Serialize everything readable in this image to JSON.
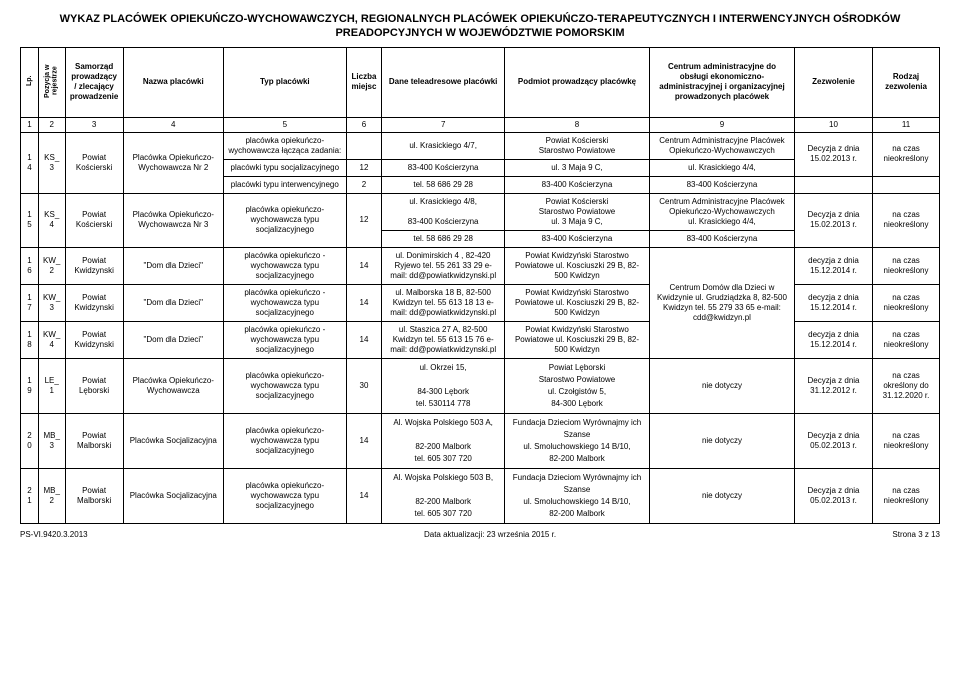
{
  "title_line1": "WYKAZ PLACÓWEK OPIEKUŃCZO-WYCHOWAWCZYCH, REGIONALNYCH PLACÓWEK OPIEKUŃCZO-TERAPEUTYCZNYCH I INTERWENCYJNYCH OŚRODKÓW",
  "title_line2": "PREADOPCYJNYCH W WOJEWÓDZTWIE POMORSKIM",
  "headers": {
    "lp": "Lp.",
    "poz": "Pozycja w rejestrze",
    "sam": "Samorząd prowadzący / zlecający prowadzenie",
    "nazwa": "Nazwa placówki",
    "typ": "Typ placówki",
    "liczba": "Liczba miejsc",
    "dane": "Dane teleadresowe placówki",
    "podmiot": "Podmiot prowadzący placówkę",
    "centrum": "Centrum administracyjne do obsługi ekonomiczno-administracyjnej i organizacyjnej prowadzonych placówek",
    "zez": "Zezwolenie",
    "rodz": "Rodzaj zezwolenia"
  },
  "numrow": [
    "1",
    "2",
    "3",
    "4",
    "5",
    "6",
    "7",
    "8",
    "9",
    "10",
    "11"
  ],
  "rows": [
    {
      "lp": "14",
      "poz": "KS_3",
      "sam": "Powiat Kościerski",
      "nazwa": "Placówka Opiekuńczo-Wychowawcza Nr 2",
      "sub": [
        {
          "typ": "placówka opiekuńczo-wychowawcza łącząca zadania:",
          "liczba": "",
          "dane": "ul. Krasickiego 4/7,",
          "podmiot": "Powiat Kościerski\nStarostwo Powiatowe",
          "centrum": "Centrum Administracyjne Placówek Opiekuńczo-Wychowawczych"
        },
        {
          "typ": "placówki typu socjalizacyjnego",
          "liczba": "12",
          "dane": "83-400 Kościerzyna",
          "podmiot": "ul. 3 Maja 9 C,",
          "centrum": "ul. Krasickiego 4/4,"
        },
        {
          "typ": "placówki typu interwencyjnego",
          "liczba": "2",
          "dane": "tel. 58 686 29 28",
          "podmiot": "83-400 Kościerzyna",
          "centrum": "83-400 Kościerzyna"
        }
      ],
      "zez": "Decyzja z dnia 15.02.2013 r.",
      "rodz": "na czas nieokreślony"
    },
    {
      "lp": "15",
      "poz": "KS_4",
      "sam": "Powiat Kościerski",
      "nazwa": "Placówka Opiekuńczo-Wychowawcza Nr 3",
      "typ": "placówka opiekuńczo-wychowawcza typu socjalizacyjnego",
      "liczba": "12",
      "dane": "ul. Krasickiego 4/8,\n\n83-400 Kościerzyna",
      "podmiot": "Powiat Kościerski\nStarostwo Powiatowe\nul. 3 Maja 9 C,",
      "centrum": "Centrum Administracyjne Placówek Opiekuńczo-Wychowawczych\nul. Krasickiego 4/4,",
      "zez": "Decyzja z dnia 15.02.2013 r.",
      "rodz": "na czas nieokreślony",
      "tail": {
        "dane": "tel. 58 686 29 28",
        "podmiot": "83-400 Kościerzyna",
        "centrum": "83-400 Kościerzyna"
      }
    },
    {
      "lp": "16",
      "poz": "KW_2",
      "sam": "Powiat Kwidzynski",
      "nazwa": "\"Dom dla Dzieci\"",
      "typ": "placówka opiekuńczo - wychowawcza typu socjalizacyjnego",
      "liczba": "14",
      "dane": "ul. Donimirskich 4 , 82-420 Ryjewo tel. 55 261 33 29 e-mail: dd@powiatkwidzynski.pl",
      "podmiot": "Powiat Kwidzyński Starostwo Powiatowe ul. Kosciuszki 29 B, 82-500 Kwidzyn",
      "centrum_span": 3,
      "centrum": "Centrum Domów dla Dzieci w Kwidzynie ul. Grudziądzka 8, 82-500 Kwidzyn tel. 55 279 33 65 e-mail: cdd@kwidzyn.pl",
      "zez": "decyzja z dnia 15.12.2014 r.",
      "rodz": "na czas nieokreślony"
    },
    {
      "lp": "17",
      "poz": "KW_3",
      "sam": "Powiat Kwidzynski",
      "nazwa": "\"Dom dla Dzieci\"",
      "typ": "placówka opiekuńczo - wychowawcza typu socjalizacyjnego",
      "liczba": "14",
      "dane": "ul. Malborska 18 B, 82-500 Kwidzyn tel. 55 613 18 13 e-mail: dd@powiatkwidzynski.pl",
      "podmiot": "Powiat Kwidzyński Starostwo Powiatowe ul. Kosciuszki 29 B, 82-500 Kwidzyn",
      "zez": "decyzja z dnia 15.12.2014 r.",
      "rodz": "na czas nieokreślony"
    },
    {
      "lp": "18",
      "poz": "KW_4",
      "sam": "Powiat Kwidzynski",
      "nazwa": "\"Dom dla Dzieci\"",
      "typ": "placówka opiekuńczo - wychowawcza typu socjalizacyjnego",
      "liczba": "14",
      "dane": "ul. Staszica 27 A, 82-500 Kwidzyn tel. 55 613 15 76 e-mail: dd@powiatkwidzynski.pl",
      "podmiot": "Powiat Kwidzyński Starostwo Powiatowe ul. Kosciuszki 29 B, 82-500 Kwidzyn",
      "zez": "decyzja z dnia 15.12.2014 r.",
      "rodz": "na czas nieokreślony"
    },
    {
      "lp": "19",
      "poz": "LE_1",
      "sam": "Powiat Lęborski",
      "nazwa": "Placówka Opiekuńczo-Wychowawcza",
      "typ": "placówka opiekuńczo-wychowawcza typu socjalizacyjnego",
      "liczba": "30",
      "dane": "ul. Okrzei 15,\n\n84-300 Lębork\ntel. 530114 778",
      "podmiot": "Powiat Lęborski\nStarostwo Powiatowe\nul. Czołgistów 5,\n84-300 Lębork",
      "centrum": "nie dotyczy",
      "zez": "Decyzja z dnia 31.12.2012 r.",
      "rodz": "na czas określony do 31.12.2020 r."
    },
    {
      "lp": "20",
      "poz": "MB_3",
      "sam": "Powiat Malborski",
      "nazwa": "Placówka Socjalizacyjna",
      "typ": "placówka opiekuńczo-wychowawcza typu socjalizacyjnego",
      "liczba": "14",
      "dane": "Al. Wojska Polskiego 503 A,\n\n82-200 Malbork\ntel. 605 307 720",
      "podmiot": "Fundacja Dzieciom Wyrównajmy ich Szanse\nul. Smoluchowskiego 14 B/10,\n82-200 Malbork",
      "centrum": "nie dotyczy",
      "zez": "Decyzja z dnia 05.02.2013 r.",
      "rodz": "na czas nieokreślony"
    },
    {
      "lp": "21",
      "poz": "MB_2",
      "sam": "Powiat Malborski",
      "nazwa": "Placówka Socjalizacyjna",
      "typ": "placówka opiekuńczo-wychowawcza typu socjalizacyjnego",
      "liczba": "14",
      "dane": "Al. Wojska Polskiego 503 B,\n\n82-200 Malbork\ntel. 605 307 720",
      "podmiot": "Fundacja Dzieciom Wyrównajmy ich Szanse\nul. Smoluchowskiego 14 B/10,\n82-200 Malbork",
      "centrum": "nie dotyczy",
      "zez": "Decyzja z dnia 05.02.2013 r.",
      "rodz": "na czas nieokreślony"
    }
  ],
  "footer": {
    "left": "PS-VI.9420.3.2013",
    "center": "Data aktualizacji: 23 września 2015 r.",
    "right": "Strona 3 z 13"
  }
}
